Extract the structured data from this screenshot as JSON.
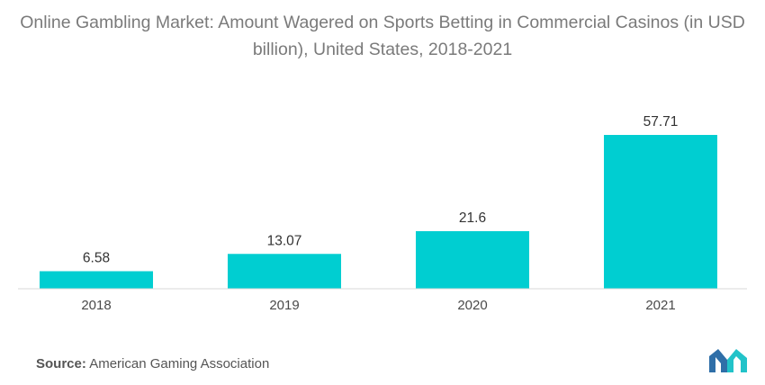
{
  "chart_data": {
    "type": "bar",
    "title": "Online Gambling Market: Amount Wagered on Sports Betting in Commercial Casinos (in USD billion), United States, 2018-2021",
    "categories": [
      "2018",
      "2019",
      "2020",
      "2021"
    ],
    "values": [
      6.58,
      13.07,
      21.6,
      57.71
    ],
    "value_labels": [
      "6.58",
      "13.07",
      "21.6",
      "57.71"
    ],
    "xlabel": "",
    "ylabel": "",
    "grid": false,
    "bar_color": "#00CED1"
  },
  "source": {
    "label": "Source:",
    "text": "American Gaming Association"
  },
  "brand": {
    "colors": [
      "#2f6fa8",
      "#22c3c9"
    ]
  }
}
